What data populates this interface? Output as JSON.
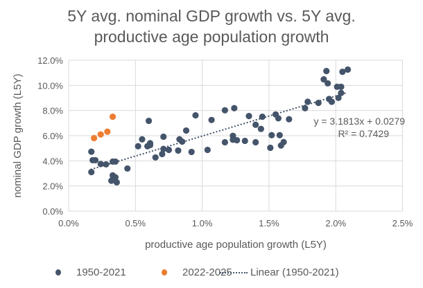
{
  "chart_data": {
    "type": "scatter",
    "title_line1": "5Y avg. nominal GDP growth vs. 5Y avg.",
    "title_line2": "productive age population growth",
    "xlabel": "productive age population growth (L5Y)",
    "ylabel": "nominal GDP growth (L5Y)",
    "xlim": [
      0,
      2.5
    ],
    "ylim": [
      0,
      12
    ],
    "x_ticks": [
      "0.0%",
      "0.5%",
      "1.0%",
      "1.5%",
      "2.0%",
      "2.5%"
    ],
    "y_ticks": [
      "0.0%",
      "2.0%",
      "4.0%",
      "6.0%",
      "8.0%",
      "10.0%",
      "12.0%"
    ],
    "grid": true,
    "legend_position": "bottom",
    "series": [
      {
        "name": "1950-2021",
        "color": "#44546a",
        "points": [
          [
            0.17,
            4.73
          ],
          [
            0.17,
            3.11
          ],
          [
            0.18,
            4.05
          ],
          [
            0.2,
            4.05
          ],
          [
            0.24,
            3.75
          ],
          [
            0.28,
            3.72
          ],
          [
            0.33,
            3.94
          ],
          [
            0.35,
            3.94
          ],
          [
            0.33,
            2.84
          ],
          [
            0.35,
            2.69
          ],
          [
            0.32,
            2.42
          ],
          [
            0.36,
            2.29
          ],
          [
            0.44,
            3.39
          ],
          [
            0.52,
            5.16
          ],
          [
            0.55,
            5.71
          ],
          [
            0.6,
            7.18
          ],
          [
            0.59,
            5.16
          ],
          [
            0.61,
            5.4
          ],
          [
            0.61,
            5.26
          ],
          [
            0.65,
            4.27
          ],
          [
            0.7,
            4.54
          ],
          [
            0.71,
            5.92
          ],
          [
            0.71,
            4.95
          ],
          [
            0.75,
            4.87
          ],
          [
            0.82,
            4.82
          ],
          [
            0.83,
            5.71
          ],
          [
            0.85,
            5.53
          ],
          [
            0.88,
            6.41
          ],
          [
            0.92,
            4.71
          ],
          [
            0.95,
            7.62
          ],
          [
            1.04,
            4.87
          ],
          [
            1.07,
            7.25
          ],
          [
            1.17,
            5.48
          ],
          [
            1.23,
            5.99
          ],
          [
            1.23,
            5.68
          ],
          [
            1.26,
            5.64
          ],
          [
            1.17,
            8.02
          ],
          [
            1.24,
            8.19
          ],
          [
            1.32,
            5.59
          ],
          [
            1.35,
            7.56
          ],
          [
            1.4,
            6.87
          ],
          [
            1.4,
            5.48
          ],
          [
            1.44,
            6.54
          ],
          [
            1.45,
            7.51
          ],
          [
            1.51,
            5.04
          ],
          [
            1.52,
            6.04
          ],
          [
            1.55,
            7.69
          ],
          [
            1.57,
            7.38
          ],
          [
            1.58,
            6.04
          ],
          [
            1.59,
            5.22
          ],
          [
            1.61,
            5.49
          ],
          [
            1.65,
            7.31
          ],
          [
            1.77,
            8.19
          ],
          [
            1.79,
            8.7
          ],
          [
            1.87,
            8.61
          ],
          [
            1.91,
            10.48
          ],
          [
            1.93,
            11.14
          ],
          [
            1.94,
            10.16
          ],
          [
            1.95,
            8.92
          ],
          [
            1.97,
            8.7
          ],
          [
            2.01,
            9.89
          ],
          [
            2.04,
            9.89
          ],
          [
            2.02,
            9.01
          ],
          [
            2.04,
            9.4
          ],
          [
            2.05,
            11.08
          ],
          [
            2.09,
            11.26
          ]
        ]
      },
      {
        "name": "2022-2025",
        "color": "#ed7d31",
        "points": [
          [
            0.19,
            5.81
          ],
          [
            0.24,
            6.1
          ],
          [
            0.29,
            6.32
          ],
          [
            0.33,
            7.51
          ]
        ]
      }
    ],
    "trendline": {
      "name": "Linear (1950-2021)",
      "slope": 3.1813,
      "intercept_pct": 2.79,
      "x_range": [
        0.17,
        2.09
      ],
      "color": "#44546a",
      "equation": "y = 3.1813x + 0.0279",
      "r_squared": "R² = 0.7429"
    }
  }
}
